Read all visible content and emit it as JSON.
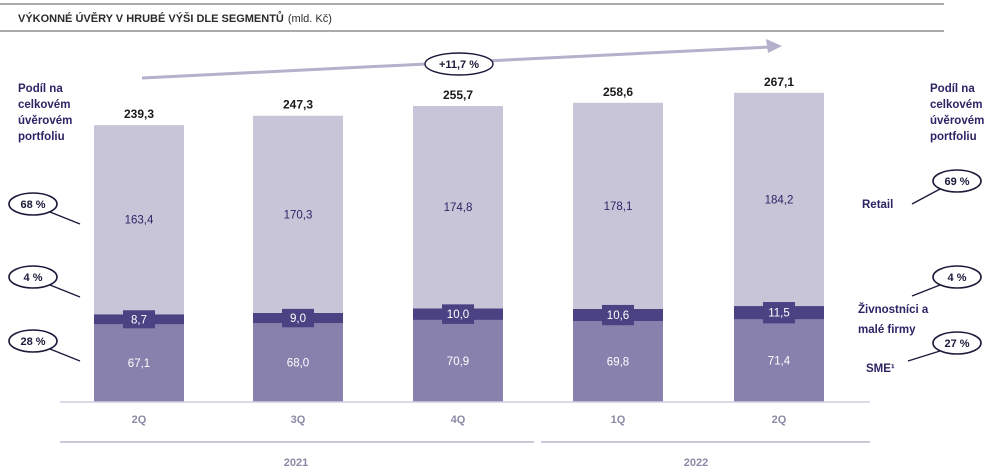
{
  "header": {
    "title": "VÝKONNÉ ÚVĚRY V HRUBÉ VÝŠI DLE SEGMENTŮ",
    "unit": "(mld. Kč)"
  },
  "left_label": [
    "Podíl na",
    "celkovém",
    "úvěrovém",
    "portfoliu"
  ],
  "right_label": [
    "Podíl na",
    "celkovém",
    "úvěrovém",
    "portfoliu"
  ],
  "left_shares": {
    "retail": "68 %",
    "small_business": "4 %",
    "sme": "28 %"
  },
  "right_shares": {
    "retail": "69 %",
    "small_business": "4 %",
    "sme": "27 %"
  },
  "growth": {
    "label": "+11,7 %"
  },
  "colors": {
    "retail": "#c9c5d9",
    "small_business": "#4a4283",
    "sme": "#8880ad",
    "text_dark": "#2b2565",
    "arrow": "#b5b0cc"
  },
  "chart_data": {
    "type": "bar",
    "stacked": true,
    "categories": [
      "2Q",
      "3Q",
      "4Q",
      "1Q",
      "2Q"
    ],
    "groups": [
      {
        "label": "2021",
        "categories": [
          0,
          1,
          2
        ]
      },
      {
        "label": "2022",
        "categories": [
          3,
          4
        ]
      }
    ],
    "series": [
      {
        "name": "SME¹",
        "values": [
          67.1,
          68.0,
          70.9,
          69.8,
          71.4
        ],
        "labels": [
          "67,1",
          "68,0",
          "70,9",
          "69,8",
          "71,4"
        ]
      },
      {
        "name": "Živnostníci a malé firmy",
        "values": [
          8.7,
          9.0,
          10.0,
          10.6,
          11.5
        ],
        "labels": [
          "8,7",
          "9,0",
          "10,0",
          "10,6",
          "11,5"
        ]
      },
      {
        "name": "Retail",
        "values": [
          163.4,
          170.3,
          174.8,
          178.1,
          184.2
        ],
        "labels": [
          "163,4",
          "170,3",
          "174,8",
          "178,1",
          "184,2"
        ]
      }
    ],
    "totals": [
      239.3,
      247.3,
      255.7,
      258.6,
      267.1
    ],
    "total_labels": [
      "239,3",
      "247,3",
      "255,7",
      "258,6",
      "267,1"
    ],
    "ylim": [
      0,
      270
    ],
    "grid": false
  }
}
